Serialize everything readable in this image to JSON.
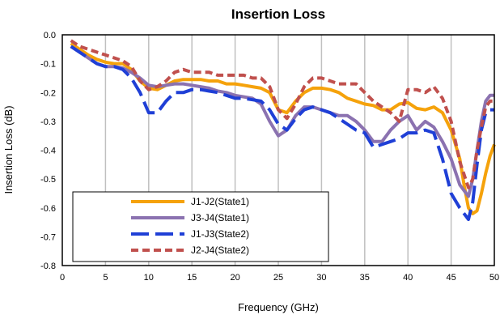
{
  "chart_data": {
    "type": "line",
    "title": "Insertion Loss",
    "xlabel": "Frequency (GHz)",
    "ylabel": "Insertion Loss  (dB)",
    "xlim": [
      0,
      50
    ],
    "ylim": [
      -0.8,
      0.0
    ],
    "xticks": [
      "0",
      "5",
      "10",
      "15",
      "20",
      "25",
      "30",
      "35",
      "40",
      "45",
      "50"
    ],
    "yticks": [
      "0.0",
      "-0.1",
      "-0.2",
      "-0.3",
      "-0.4",
      "-0.5",
      "-0.6",
      "-0.7",
      "-0.8"
    ],
    "grid": {
      "vertical": true,
      "horizontal": false
    },
    "legend_position": "lower-left",
    "series": [
      {
        "name": "J1-J2(State1)",
        "color": "#f5a20b",
        "style": "solid",
        "x": [
          1,
          2,
          3,
          4,
          5,
          6,
          7,
          8,
          9,
          10,
          11,
          12,
          13,
          14,
          15,
          16,
          17,
          18,
          19,
          20,
          21,
          22,
          23,
          24,
          25,
          26,
          27,
          28,
          29,
          30,
          31,
          32,
          33,
          34,
          35,
          36,
          37,
          38,
          39,
          40,
          41,
          42,
          43,
          44,
          45,
          46,
          46.5,
          47,
          47.5,
          48,
          48.5,
          49,
          49.5,
          50
        ],
        "y": [
          -0.03,
          -0.05,
          -0.07,
          -0.085,
          -0.095,
          -0.1,
          -0.1,
          -0.12,
          -0.16,
          -0.185,
          -0.19,
          -0.175,
          -0.16,
          -0.155,
          -0.155,
          -0.155,
          -0.16,
          -0.16,
          -0.17,
          -0.17,
          -0.175,
          -0.18,
          -0.185,
          -0.2,
          -0.26,
          -0.27,
          -0.23,
          -0.2,
          -0.185,
          -0.185,
          -0.19,
          -0.2,
          -0.22,
          -0.23,
          -0.24,
          -0.245,
          -0.26,
          -0.26,
          -0.24,
          -0.235,
          -0.255,
          -0.26,
          -0.25,
          -0.27,
          -0.33,
          -0.43,
          -0.52,
          -0.6,
          -0.62,
          -0.61,
          -0.55,
          -0.48,
          -0.42,
          -0.38
        ]
      },
      {
        "name": "J3-J4(State1)",
        "color": "#8b72b0",
        "style": "solid",
        "x": [
          1,
          2,
          3,
          4,
          5,
          6,
          7,
          8,
          9,
          10,
          11,
          12,
          13,
          14,
          15,
          16,
          17,
          18,
          19,
          20,
          21,
          22,
          23,
          24,
          25,
          26,
          27,
          28,
          29,
          30,
          31,
          32,
          33,
          34,
          35,
          36,
          37,
          38,
          39,
          40,
          41,
          42,
          43,
          44,
          45,
          46,
          47,
          47.5,
          48,
          48.5,
          49,
          49.5,
          50
        ],
        "y": [
          -0.04,
          -0.06,
          -0.08,
          -0.1,
          -0.11,
          -0.11,
          -0.115,
          -0.13,
          -0.15,
          -0.175,
          -0.18,
          -0.175,
          -0.17,
          -0.17,
          -0.175,
          -0.18,
          -0.185,
          -0.195,
          -0.2,
          -0.21,
          -0.215,
          -0.22,
          -0.24,
          -0.3,
          -0.35,
          -0.33,
          -0.28,
          -0.25,
          -0.25,
          -0.26,
          -0.27,
          -0.28,
          -0.28,
          -0.3,
          -0.33,
          -0.37,
          -0.37,
          -0.33,
          -0.3,
          -0.28,
          -0.33,
          -0.3,
          -0.32,
          -0.37,
          -0.43,
          -0.52,
          -0.56,
          -0.5,
          -0.4,
          -0.3,
          -0.23,
          -0.21,
          -0.21
        ]
      },
      {
        "name": "J1-J3(State2)",
        "color": "#1f3fd6",
        "style": "longdash",
        "x": [
          1,
          2,
          3,
          4,
          5,
          6,
          7,
          8,
          9,
          10,
          11,
          12,
          13,
          14,
          15,
          16,
          17,
          18,
          19,
          20,
          21,
          22,
          23,
          24,
          25,
          26,
          27,
          28,
          29,
          30,
          31,
          32,
          33,
          34,
          35,
          36,
          37,
          38,
          39,
          40,
          41,
          42,
          43,
          44,
          45,
          46,
          47,
          47.5,
          48,
          48.5,
          49,
          49.5,
          50
        ],
        "y": [
          -0.04,
          -0.06,
          -0.08,
          -0.1,
          -0.11,
          -0.11,
          -0.12,
          -0.15,
          -0.2,
          -0.27,
          -0.27,
          -0.23,
          -0.2,
          -0.2,
          -0.19,
          -0.19,
          -0.195,
          -0.2,
          -0.21,
          -0.22,
          -0.22,
          -0.225,
          -0.23,
          -0.26,
          -0.31,
          -0.33,
          -0.29,
          -0.26,
          -0.25,
          -0.26,
          -0.27,
          -0.29,
          -0.31,
          -0.33,
          -0.34,
          -0.39,
          -0.38,
          -0.37,
          -0.36,
          -0.34,
          -0.34,
          -0.33,
          -0.34,
          -0.43,
          -0.55,
          -0.6,
          -0.64,
          -0.58,
          -0.45,
          -0.33,
          -0.27,
          -0.26,
          -0.26
        ]
      },
      {
        "name": "J2-J4(State2)",
        "color": "#c0504d",
        "style": "dash",
        "x": [
          1,
          2,
          3,
          4,
          5,
          6,
          7,
          8,
          9,
          10,
          11,
          12,
          13,
          14,
          15,
          16,
          17,
          18,
          19,
          20,
          21,
          22,
          23,
          24,
          25,
          26,
          27,
          28,
          29,
          30,
          31,
          32,
          33,
          34,
          35,
          36,
          37,
          38,
          39,
          40,
          41,
          42,
          43,
          44,
          45,
          46,
          47,
          47.5,
          48,
          48.5,
          49,
          49.5,
          50
        ],
        "y": [
          -0.02,
          -0.04,
          -0.05,
          -0.06,
          -0.07,
          -0.08,
          -0.09,
          -0.11,
          -0.16,
          -0.19,
          -0.18,
          -0.16,
          -0.13,
          -0.12,
          -0.13,
          -0.13,
          -0.13,
          -0.14,
          -0.14,
          -0.14,
          -0.14,
          -0.15,
          -0.15,
          -0.18,
          -0.26,
          -0.29,
          -0.24,
          -0.18,
          -0.15,
          -0.15,
          -0.16,
          -0.17,
          -0.17,
          -0.17,
          -0.2,
          -0.23,
          -0.25,
          -0.27,
          -0.3,
          -0.19,
          -0.19,
          -0.2,
          -0.18,
          -0.22,
          -0.3,
          -0.44,
          -0.53,
          -0.5,
          -0.4,
          -0.32,
          -0.25,
          -0.23,
          -0.23
        ]
      }
    ]
  }
}
